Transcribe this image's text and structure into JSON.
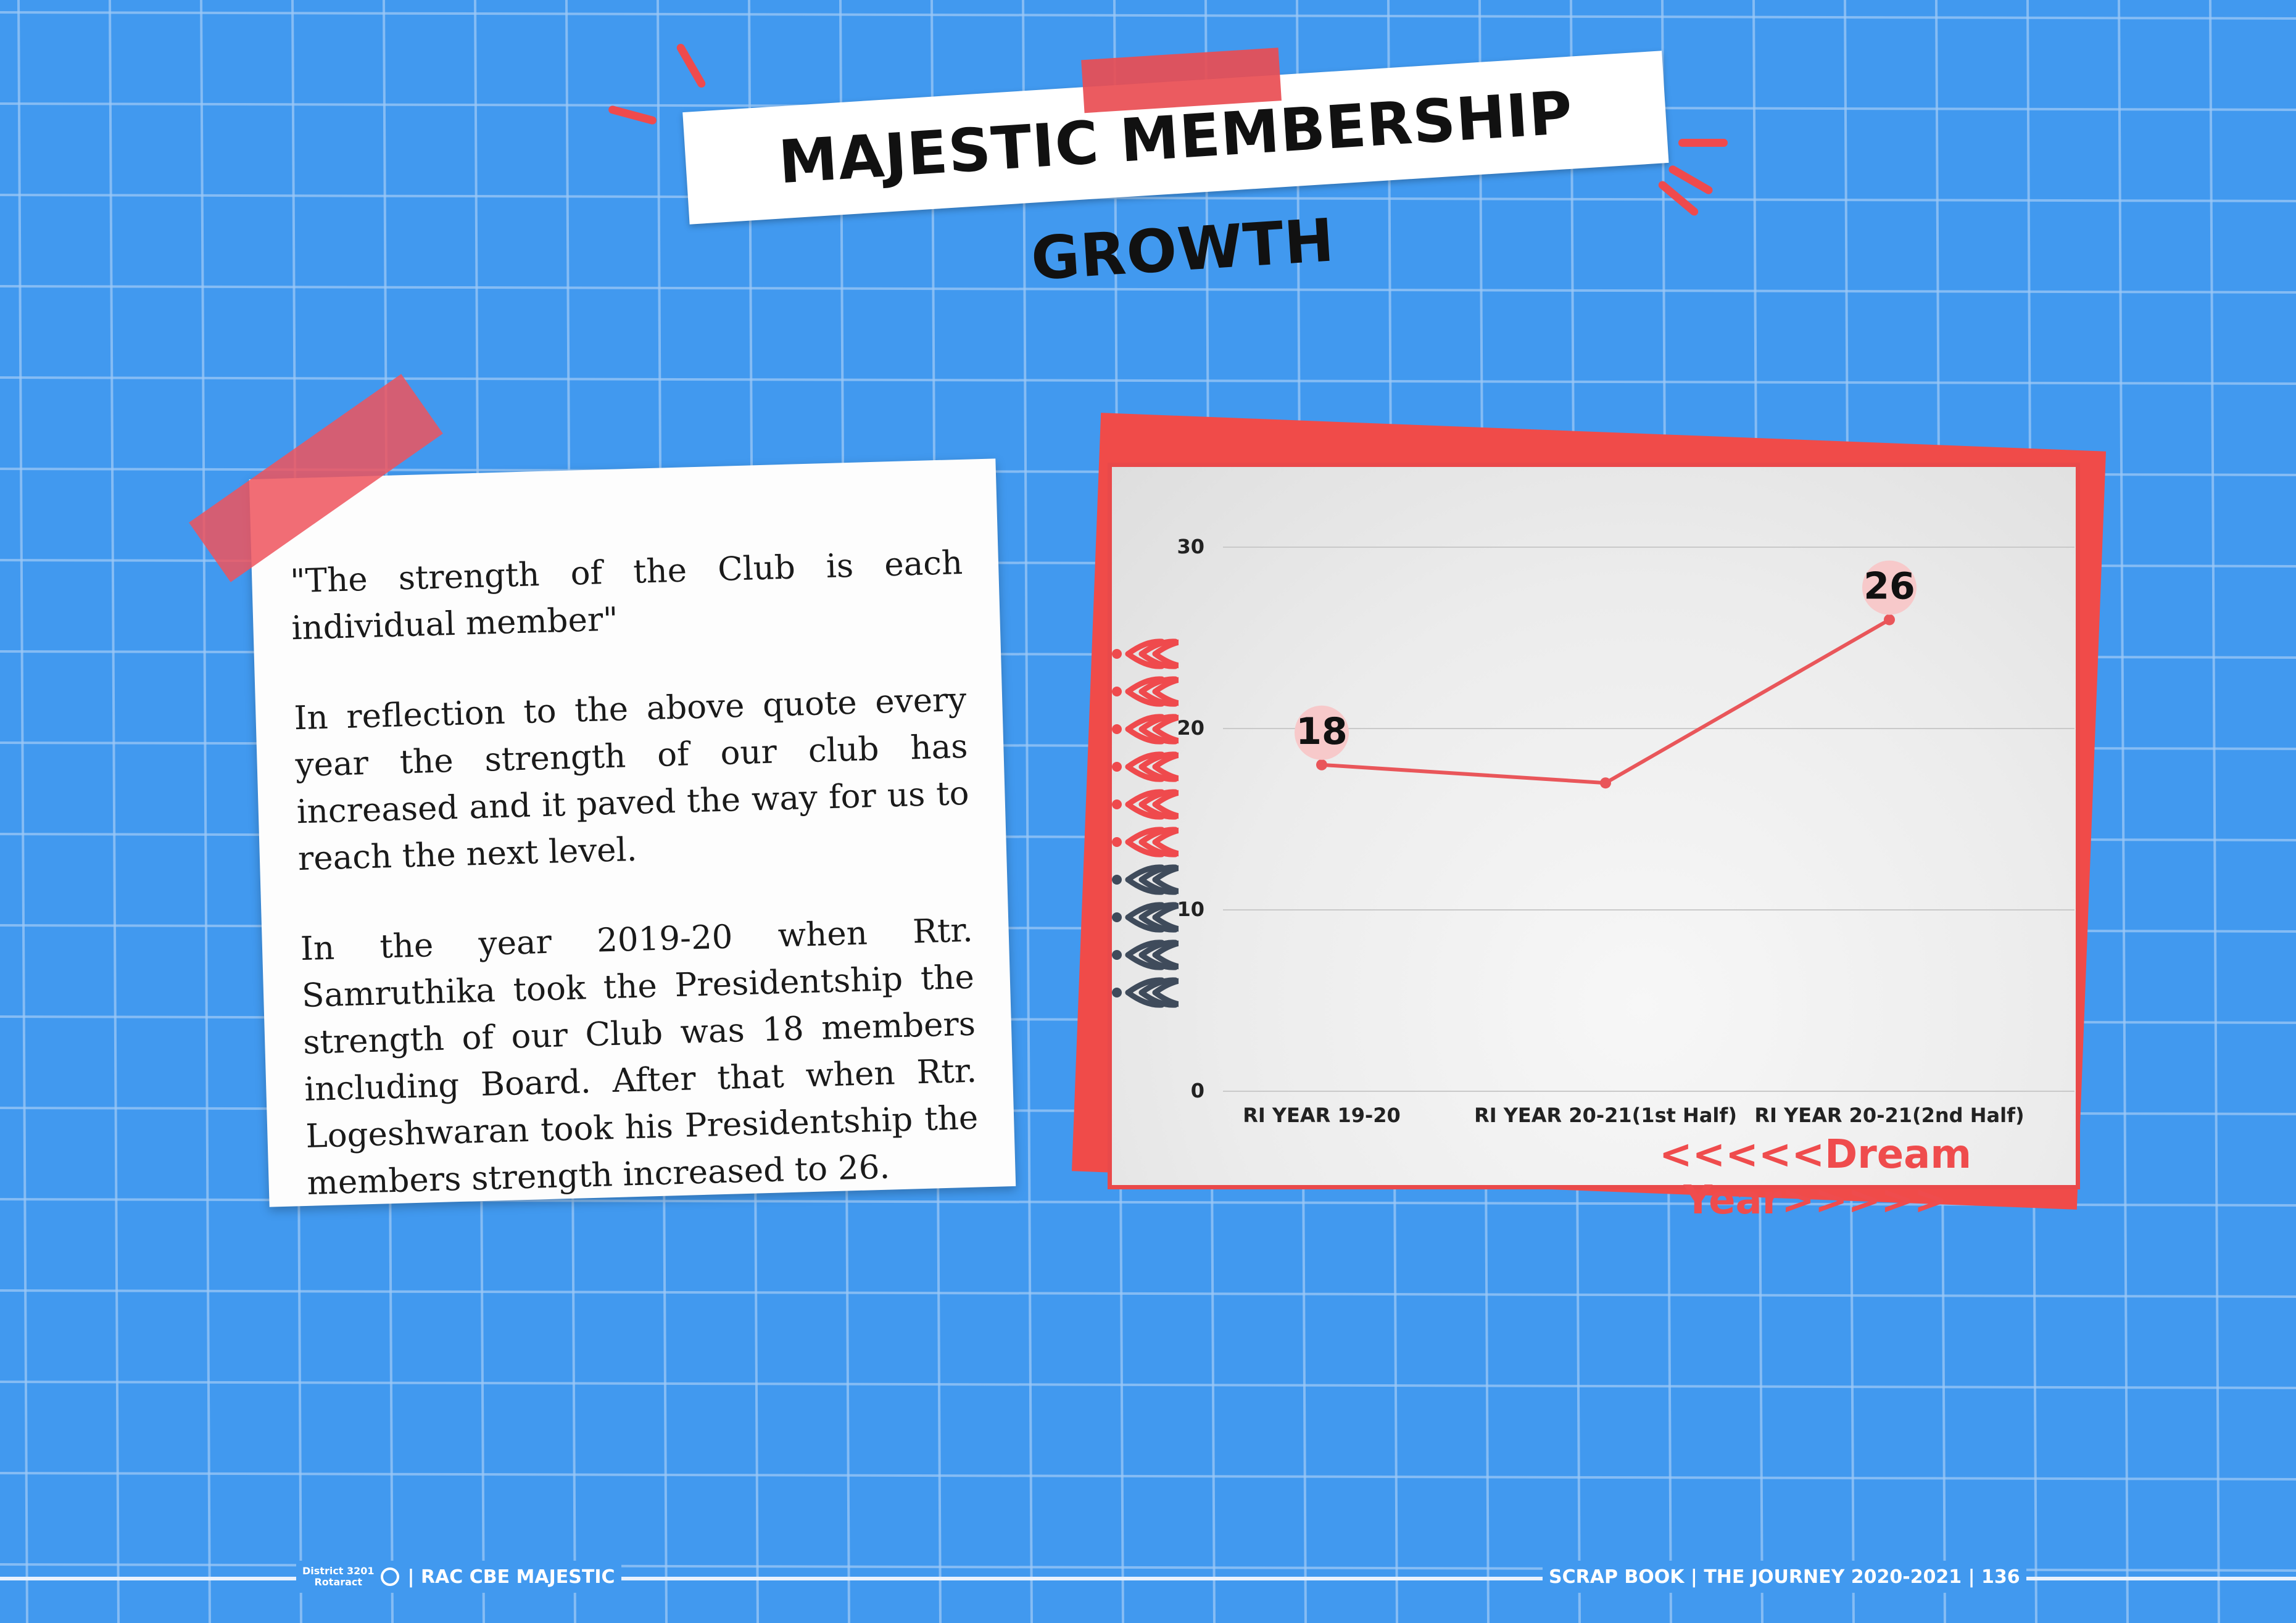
{
  "title": "MAJESTIC MEMBERSHIP GROWTH",
  "note": {
    "quote": "\"The strength of the Club is each individual member\"",
    "paragraph1": "In reflection to the above quote every year the strength of our club has increased and it paved the way for us to reach the next level.",
    "paragraph2": "In the year 2019-20 when Rtr. Samruthika took the Presidentship the strength of our Club was 18 members including Board. After that when Rtr. Logeshwaran took his Presidentship the members strength increased to 26."
  },
  "chart_data": {
    "type": "line",
    "categories": [
      "RI YEAR 19-20",
      "RI YEAR 20-21(1st Half)",
      "RI YEAR 20-21(2nd Half)"
    ],
    "values": [
      18,
      17,
      26
    ],
    "data_labels": [
      "18",
      "",
      "26"
    ],
    "yticks": [
      0,
      10,
      20,
      30
    ],
    "ylim": [
      0,
      30
    ],
    "grid": true,
    "line_color": "#e9565a",
    "annotation": "<<<<<Dream Year>>>>>"
  },
  "colors": {
    "background": "#4199ef",
    "accent_red": "#ef4a4d"
  },
  "footer": {
    "logo_small": "District 3201",
    "logo_name": "Rotaract",
    "left": "| RAC CBE MAJESTIC",
    "right": "SCRAP BOOK | THE JOURNEY 2020-2021 | 136"
  }
}
